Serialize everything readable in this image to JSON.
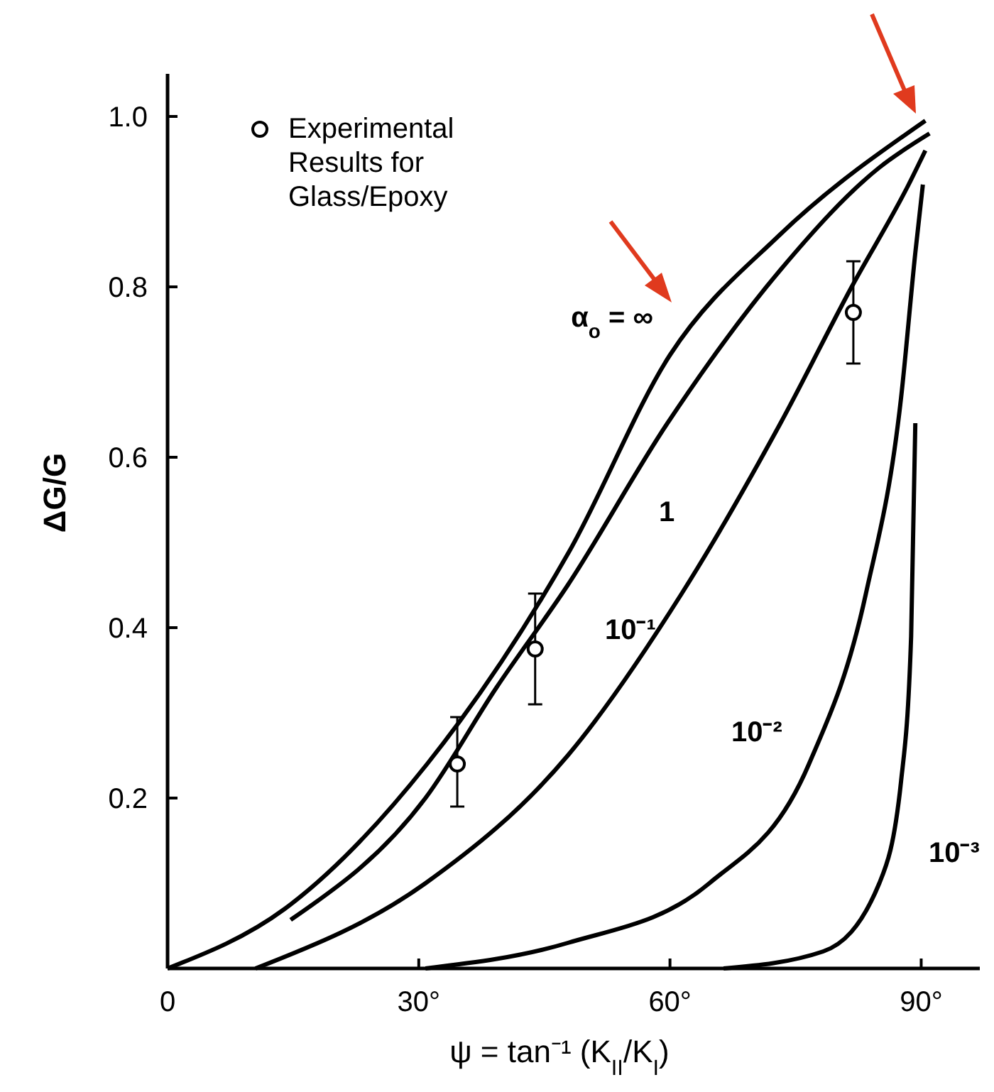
{
  "chart_data": {
    "type": "line",
    "xlabel": "ψ = tan⁻¹ (K$_{II}$/K$_{I}$)",
    "ylabel": "ΔG/G",
    "xlim": [
      0,
      97
    ],
    "ylim": [
      0,
      1.05
    ],
    "xticks": [
      0,
      {
        "value": 30,
        "label": "30°"
      },
      {
        "value": 60,
        "label": "60°"
      },
      {
        "value": 90,
        "label": "90°"
      }
    ],
    "yticks": [
      0.2,
      0.4,
      0.6,
      0.8,
      {
        "value": 1,
        "label": "1.0"
      }
    ],
    "grid": false,
    "legend": "top left",
    "line_style": "solid",
    "series": [
      {
        "name": "α$_{o}$ = ∞",
        "color": "#000000",
        "marker": "none",
        "x": [
          0,
          14,
          31,
          48,
          60,
          73,
          90.5
        ],
        "values": [
          0,
          0.07,
          0.24,
          0.49,
          0.72,
          0.86,
          0.995
        ]
      },
      {
        "name": "1",
        "color": "#000000",
        "marker": "none",
        "x": [
          14.7,
          30.8,
          39.3,
          47.8,
          59.7,
          73.2,
          85,
          91
        ],
        "values": [
          0.057,
          0.2,
          0.33,
          0.45,
          0.64,
          0.82,
          0.94,
          0.98
        ]
      },
      {
        "name": "10⁻¹",
        "color": "#000000",
        "marker": "none",
        "x": [
          10.5,
          30.8,
          47.8,
          61.4,
          73.2,
          81.7,
          88.5,
          90.5
        ],
        "values": [
          0,
          0.1,
          0.25,
          0.44,
          0.64,
          0.8,
          0.92,
          0.96
        ]
      },
      {
        "name": "10⁻²",
        "color": "#000000",
        "marker": "none",
        "x": [
          30.8,
          47.8,
          64.7,
          76.6,
          83.4,
          87.6,
          89.3,
          90.2
        ],
        "values": [
          0,
          0.03,
          0.1,
          0.24,
          0.44,
          0.67,
          0.84,
          0.92
        ]
      },
      {
        "name": "10⁻³",
        "color": "#000000",
        "marker": "none",
        "x": [
          66.4,
          78.3,
          85,
          87.6,
          88.8,
          89.3
        ],
        "values": [
          0,
          0.02,
          0.1,
          0.22,
          0.39,
          0.64
        ]
      },
      {
        "name": "Experimental Results for Glass/Epoxy",
        "type": "scatter",
        "color": "#000000",
        "marker": "circle",
        "x": [
          34.6,
          43.9,
          81.9
        ],
        "values": [
          0.24,
          0.375,
          0.77
        ],
        "errors": [
          [
            0.19,
            0.295
          ],
          [
            0.31,
            0.44
          ],
          [
            0.71,
            0.83
          ]
        ]
      }
    ]
  }
}
